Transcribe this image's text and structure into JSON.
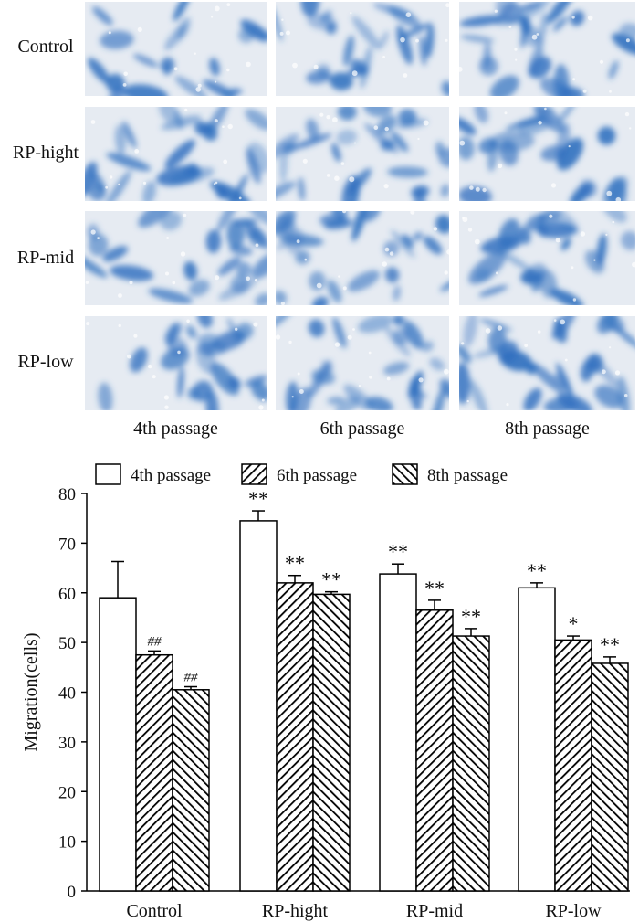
{
  "micrographs": {
    "row_labels": [
      "Control",
      "RP-hight",
      "RP-mid",
      "RP-low"
    ],
    "col_labels": [
      "4th passage",
      "6th passage",
      "8th passage"
    ],
    "stain_color": "#2f6fbf",
    "background_color": "#e6ebf2"
  },
  "chart_data": {
    "type": "bar",
    "title": "",
    "xlabel": "",
    "ylabel": "Migration(cells)",
    "ylim": [
      0,
      80
    ],
    "yticks": [
      0,
      10,
      20,
      30,
      40,
      50,
      60,
      70,
      80
    ],
    "categories": [
      "Control",
      "RP-hight",
      "RP-mid",
      "RP-low"
    ],
    "series": [
      {
        "name": "4th passage",
        "fill": "white",
        "values": [
          59,
          74.5,
          63.8,
          61
        ],
        "errors": [
          7.3,
          2,
          2,
          1
        ],
        "annotations": [
          "",
          "**",
          "**",
          "**"
        ]
      },
      {
        "name": "6th passage",
        "fill": "hatch-right",
        "values": [
          47.5,
          62,
          56.5,
          50.5
        ],
        "errors": [
          0.8,
          1.5,
          2,
          0.8
        ],
        "annotations": [
          "##",
          "**",
          "**",
          "*"
        ]
      },
      {
        "name": "8th passage",
        "fill": "hatch-left",
        "values": [
          40.5,
          59.7,
          51.3,
          45.8
        ],
        "errors": [
          0.6,
          0.5,
          1.5,
          1.3
        ],
        "annotations": [
          "##",
          "**",
          "**",
          "**"
        ]
      }
    ],
    "legend_position": "top",
    "grid": false
  }
}
